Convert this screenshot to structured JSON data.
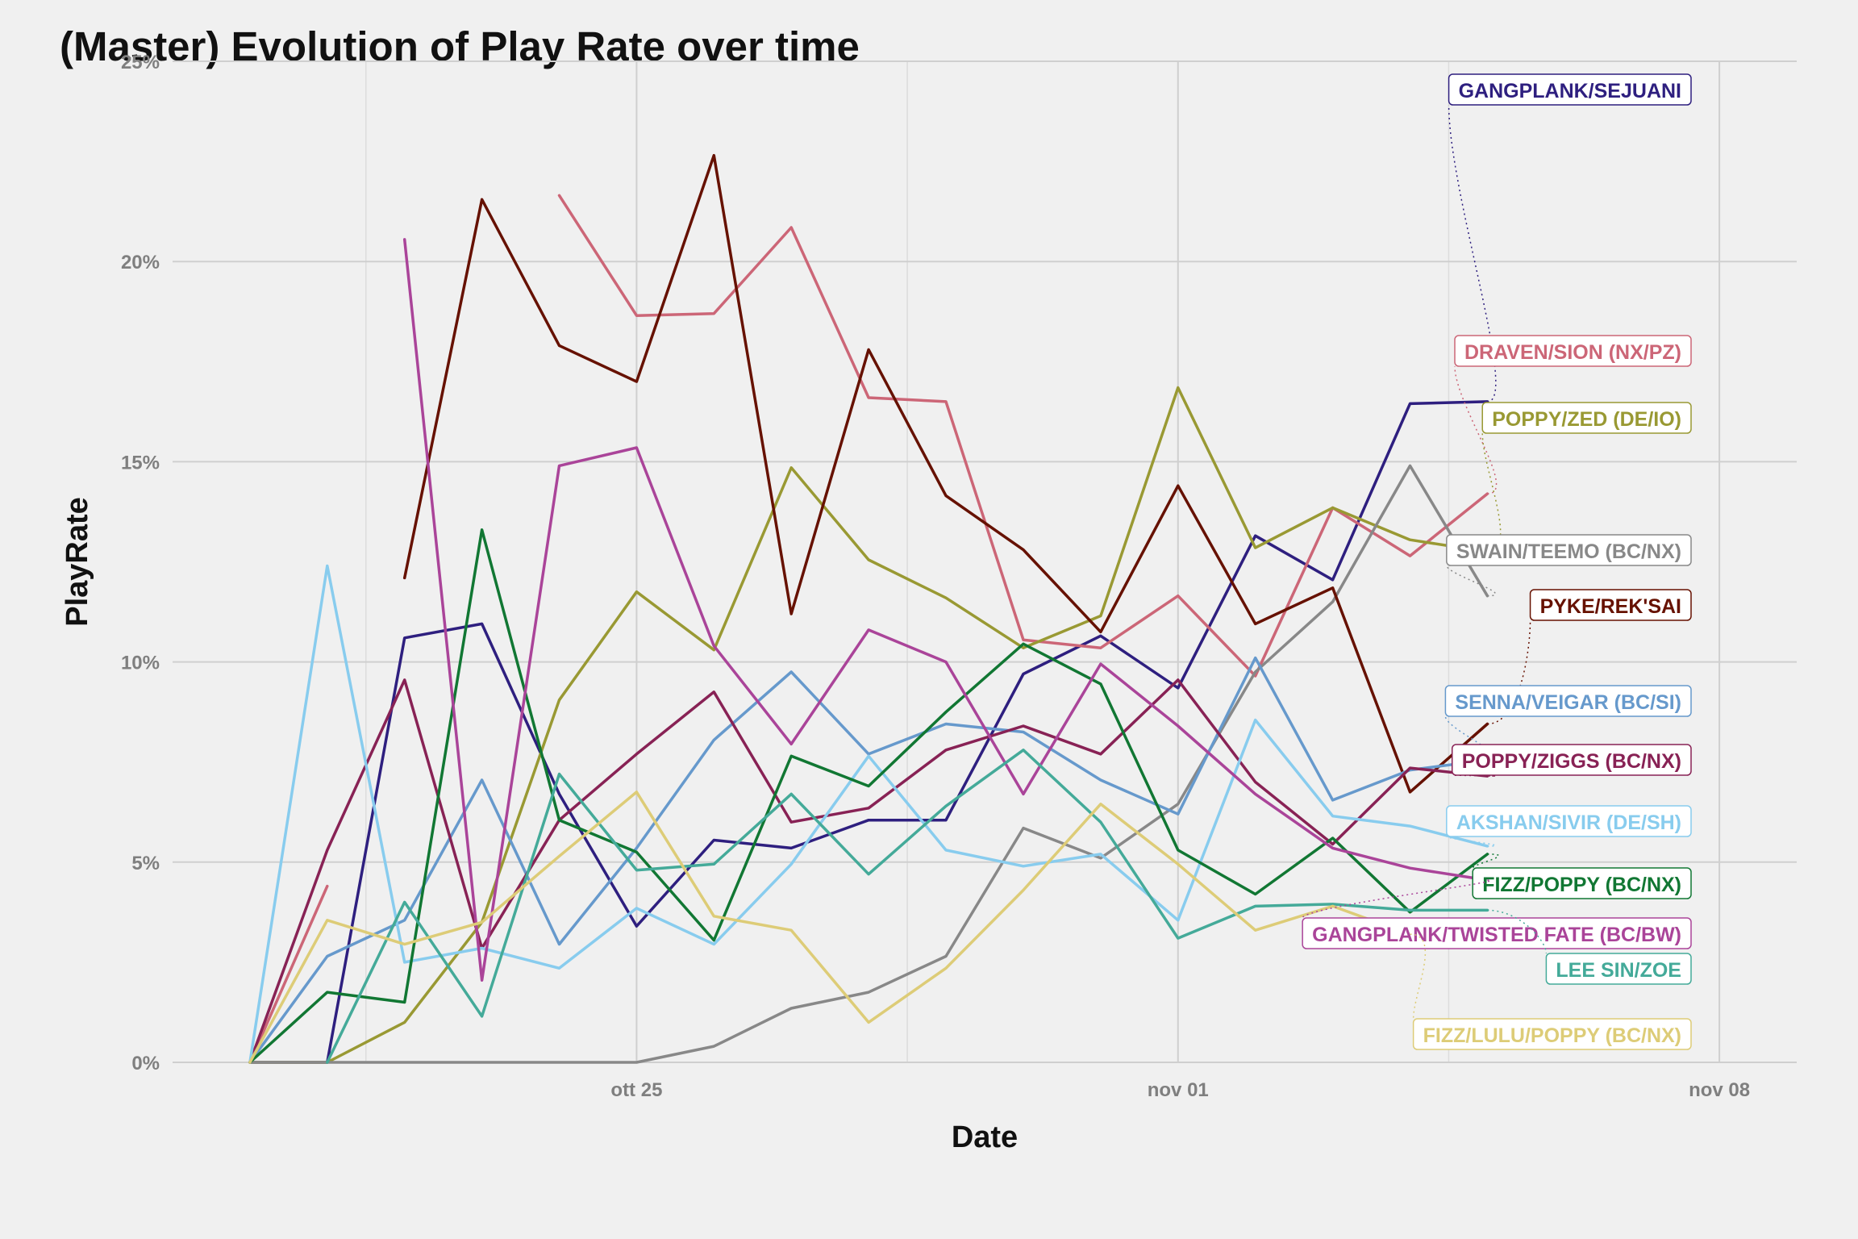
{
  "chart_data": {
    "type": "line",
    "title": "(Master) Evolution of Play Rate over time",
    "xlabel": "Date",
    "ylabel": "PlayRate",
    "x": [
      "2020-10-20",
      "2020-10-21",
      "2020-10-22",
      "2020-10-23",
      "2020-10-24",
      "2020-10-25",
      "2020-10-26",
      "2020-10-27",
      "2020-10-28",
      "2020-10-29",
      "2020-10-30",
      "2020-10-31",
      "2020-11-01",
      "2020-11-02",
      "2020-11-03",
      "2020-11-04",
      "2020-11-05"
    ],
    "x_ticks": [
      "ott 25",
      "nov 01",
      "nov 08"
    ],
    "x_tick_dates": [
      "2020-10-25",
      "2020-11-01",
      "2020-11-08"
    ],
    "xlim": [
      "2020-10-19",
      "2020-11-09"
    ],
    "y_ticks": [
      "0%",
      "5%",
      "10%",
      "15%",
      "20%",
      "25%"
    ],
    "ylim": [
      0,
      25
    ],
    "grid": true,
    "series": [
      {
        "name": "GANGPLANK/SEJUANI",
        "color": "#2e1f7f",
        "values": [
          0,
          0,
          10.6,
          10.95,
          6.7,
          3.4,
          5.55,
          5.35,
          6.05,
          6.05,
          9.7,
          10.65,
          9.35,
          13.15,
          12.05,
          16.45,
          16.5
        ]
      },
      {
        "name": "DRAVEN/SION (NX/PZ)",
        "color": "#cc6677",
        "values": [
          0,
          4.4,
          null,
          null,
          21.65,
          18.65,
          18.7,
          20.85,
          16.6,
          16.5,
          10.55,
          10.35,
          11.65,
          9.65,
          13.85,
          12.65,
          14.2
        ]
      },
      {
        "name": "POPPY/ZED (DE/IO)",
        "color": "#999933",
        "values": [
          0,
          0,
          1.0,
          3.5,
          9.05,
          11.75,
          10.3,
          14.85,
          12.55,
          11.6,
          10.35,
          11.15,
          16.85,
          12.85,
          13.85,
          13.05,
          12.75
        ]
      },
      {
        "name": "SWAIN/TEEMO (BC/NX)",
        "color": "#888888",
        "values": [
          0,
          0,
          0,
          0,
          0,
          0,
          0.4,
          1.35,
          1.75,
          2.65,
          5.85,
          5.1,
          6.45,
          9.75,
          11.5,
          14.9,
          11.65
        ]
      },
      {
        "name": "PYKE/REK'SAI",
        "color": "#661100",
        "values": [
          0,
          null,
          12.1,
          21.55,
          17.9,
          17.0,
          22.65,
          11.2,
          17.8,
          14.15,
          12.8,
          10.75,
          14.4,
          10.95,
          11.85,
          6.75,
          8.45
        ]
      },
      {
        "name": "SENNA/VEIGAR (BC/SI)",
        "color": "#6699cc",
        "values": [
          0,
          2.65,
          3.55,
          7.05,
          2.95,
          5.35,
          8.05,
          9.75,
          7.7,
          8.45,
          8.25,
          7.05,
          6.2,
          10.1,
          6.55,
          7.3,
          7.55
        ]
      },
      {
        "name": "POPPY/ZIGGS (BC/NX)",
        "color": "#882255",
        "values": [
          0,
          5.3,
          9.55,
          2.85,
          6.05,
          7.7,
          9.25,
          6.0,
          6.35,
          7.8,
          8.4,
          7.7,
          9.55,
          7.0,
          5.45,
          7.35,
          7.15
        ]
      },
      {
        "name": "AKSHAN/SIVIR (DE/SH)",
        "color": "#88ccee",
        "values": [
          0,
          12.4,
          2.5,
          2.85,
          2.35,
          3.85,
          2.95,
          4.95,
          7.65,
          5.3,
          4.9,
          5.2,
          3.55,
          8.55,
          6.15,
          5.9,
          5.4
        ]
      },
      {
        "name": "FIZZ/POPPY (BC/NX)",
        "color": "#117733",
        "values": [
          0,
          1.75,
          1.5,
          13.3,
          6.05,
          5.25,
          3.05,
          7.65,
          6.9,
          8.75,
          10.45,
          9.45,
          5.3,
          4.2,
          5.6,
          3.75,
          5.2
        ]
      },
      {
        "name": "GANGPLANK/TWISTED FATE (BC/BW)",
        "color": "#aa4499",
        "values": [
          null,
          null,
          20.55,
          2.05,
          14.9,
          15.35,
          10.4,
          7.95,
          10.8,
          10.0,
          6.7,
          9.95,
          8.4,
          6.7,
          5.35,
          4.85,
          4.55
        ]
      },
      {
        "name": "LEE SIN/ZOE",
        "color": "#44aa99",
        "values": [
          null,
          0,
          4.0,
          1.15,
          7.2,
          4.8,
          4.95,
          6.7,
          4.7,
          6.4,
          7.8,
          6.0,
          3.1,
          3.9,
          3.95,
          3.8,
          3.8
        ]
      },
      {
        "name": "FIZZ/LULU/POPPY (BC/NX)",
        "color": "#ddcc77",
        "values": [
          0,
          3.55,
          2.95,
          3.5,
          5.15,
          6.75,
          3.65,
          3.3,
          1.0,
          2.35,
          4.3,
          6.45,
          4.95,
          3.3,
          3.9,
          3.2,
          null
        ]
      }
    ]
  }
}
